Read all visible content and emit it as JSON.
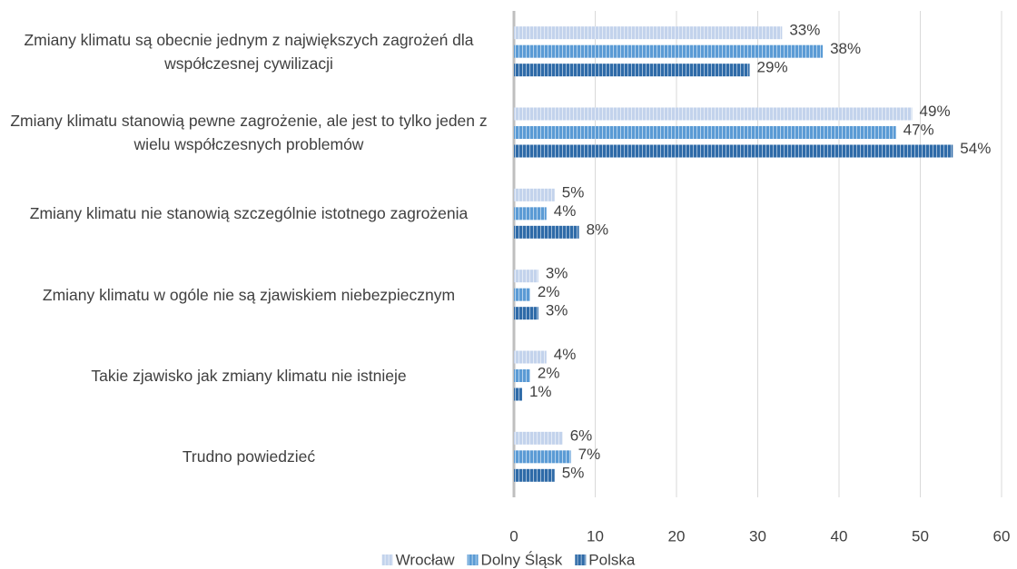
{
  "chart_data": {
    "type": "bar",
    "orientation": "horizontal",
    "categories": [
      "Zmiany klimatu są obecnie jednym z największych zagrożeń dla współczesnej cywilizacji",
      "Zmiany klimatu stanowią pewne zagrożenie, ale jest to tylko jeden z wielu współczesnych problemów",
      "Zmiany klimatu nie stanowią szczególnie istotnego zagrożenia",
      "Zmiany klimatu w ogóle nie są zjawiskiem niebezpiecznym",
      "Takie zjawisko jak zmiany klimatu nie istnieje",
      "Trudno powiedzieć"
    ],
    "series": [
      {
        "name": "Wrocław",
        "color": "#c3d3ec",
        "values": [
          33,
          49,
          5,
          3,
          4,
          6
        ],
        "value_labels": [
          "33%",
          "49%",
          "5%",
          "3%",
          "4%",
          "6%"
        ]
      },
      {
        "name": "Dolny Śląsk",
        "color": "#5b9bd5",
        "values": [
          38,
          47,
          4,
          2,
          2,
          7
        ],
        "value_labels": [
          "38%",
          "47%",
          "4%",
          "2%",
          "2%",
          "7%"
        ]
      },
      {
        "name": "Polska",
        "color": "#2f6ba8",
        "values": [
          29,
          54,
          8,
          3,
          1,
          5
        ],
        "value_labels": [
          "29%",
          "54%",
          "8%",
          "3%",
          "1%",
          "5%"
        ]
      }
    ],
    "xlim": [
      0,
      60
    ],
    "xticks": [
      0,
      10,
      20,
      30,
      40,
      50,
      60
    ],
    "grid": true,
    "legend": "bottom"
  }
}
